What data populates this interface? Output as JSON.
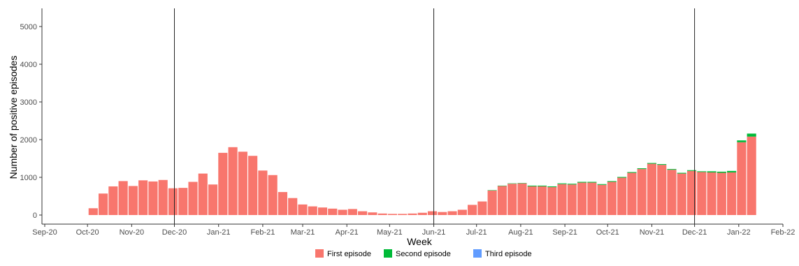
{
  "chart_data": {
    "type": "bar",
    "stacked": true,
    "xlabel": "Week",
    "ylabel": "Number of positive episodes",
    "x_ticks": [
      "Sep-20",
      "Oct-20",
      "Nov-20",
      "Dec-20",
      "Jan-21",
      "Feb-21",
      "Mar-21",
      "Apr-21",
      "May-21",
      "Jun-21",
      "Jul-21",
      "Aug-21",
      "Sep-21",
      "Oct-21",
      "Nov-21",
      "Dec-21",
      "Jan-22",
      "Feb-22"
    ],
    "y_ticks": [
      "0",
      "1000",
      "2000",
      "3000",
      "4000",
      "5000"
    ],
    "ylim": [
      0,
      5400
    ],
    "x_range": [
      "2020-09-01",
      "2022-02-01"
    ],
    "vertical_lines": [
      "2020-12-01",
      "2021-06-01",
      "2021-12-01"
    ],
    "legend_position": "bottom",
    "colors": {
      "first": "#f8766d",
      "second": "#00ba38",
      "third": "#619cff"
    },
    "weeks": [
      "2020-10-05",
      "2020-10-12",
      "2020-10-19",
      "2020-10-26",
      "2020-11-02",
      "2020-11-09",
      "2020-11-16",
      "2020-11-23",
      "2020-11-30",
      "2020-12-07",
      "2020-12-14",
      "2020-12-21",
      "2020-12-28",
      "2021-01-04",
      "2021-01-11",
      "2021-01-18",
      "2021-01-25",
      "2021-02-01",
      "2021-02-08",
      "2021-02-15",
      "2021-02-22",
      "2021-03-01",
      "2021-03-08",
      "2021-03-15",
      "2021-03-22",
      "2021-03-29",
      "2021-04-05",
      "2021-04-12",
      "2021-04-19",
      "2021-04-26",
      "2021-05-03",
      "2021-05-10",
      "2021-05-17",
      "2021-05-24",
      "2021-05-31",
      "2021-06-07",
      "2021-06-14",
      "2021-06-21",
      "2021-06-28",
      "2021-07-05",
      "2021-07-12",
      "2021-07-19",
      "2021-07-26",
      "2021-08-02",
      "2021-08-09",
      "2021-08-16",
      "2021-08-23",
      "2021-08-30",
      "2021-09-06",
      "2021-09-13",
      "2021-09-20",
      "2021-09-27",
      "2021-10-04",
      "2021-10-11",
      "2021-10-18",
      "2021-10-25",
      "2021-11-01",
      "2021-11-08",
      "2021-11-15",
      "2021-11-22",
      "2021-11-29",
      "2021-12-06",
      "2021-12-13",
      "2021-12-20",
      "2021-12-27",
      "2022-01-03",
      "2022-01-10"
    ],
    "series": [
      {
        "name": "First episode",
        "values": [
          180,
          570,
          760,
          900,
          770,
          920,
          890,
          930,
          710,
          720,
          880,
          1100,
          810,
          1650,
          1800,
          1680,
          1570,
          1180,
          1060,
          610,
          450,
          280,
          230,
          200,
          170,
          140,
          160,
          100,
          70,
          40,
          30,
          30,
          40,
          60,
          100,
          80,
          100,
          140,
          270,
          360,
          650,
          770,
          830,
          840,
          760,
          760,
          740,
          820,
          810,
          860,
          860,
          800,
          880,
          990,
          1120,
          1220,
          1360,
          1330,
          1200,
          1100,
          1170,
          1140,
          1130,
          1120,
          1130,
          1930,
          2080
        ]
      },
      {
        "name": "Second episode",
        "values": [
          0,
          0,
          0,
          0,
          0,
          0,
          0,
          0,
          0,
          0,
          0,
          0,
          0,
          0,
          0,
          0,
          0,
          0,
          0,
          0,
          0,
          0,
          0,
          0,
          0,
          0,
          0,
          0,
          0,
          0,
          0,
          0,
          0,
          0,
          0,
          0,
          0,
          0,
          0,
          0,
          10,
          10,
          10,
          10,
          20,
          20,
          20,
          20,
          20,
          20,
          20,
          20,
          20,
          20,
          20,
          20,
          20,
          20,
          20,
          20,
          20,
          20,
          30,
          30,
          40,
          50,
          80
        ]
      },
      {
        "name": "Third episode",
        "values": [
          0,
          0,
          0,
          0,
          0,
          0,
          0,
          0,
          0,
          0,
          0,
          0,
          0,
          0,
          0,
          0,
          0,
          0,
          0,
          0,
          0,
          0,
          0,
          0,
          0,
          0,
          0,
          0,
          0,
          0,
          0,
          0,
          0,
          0,
          0,
          0,
          0,
          0,
          0,
          0,
          0,
          0,
          0,
          0,
          0,
          0,
          0,
          0,
          0,
          0,
          0,
          0,
          0,
          0,
          0,
          0,
          0,
          0,
          0,
          0,
          0,
          0,
          0,
          0,
          0,
          0,
          0
        ]
      }
    ]
  }
}
